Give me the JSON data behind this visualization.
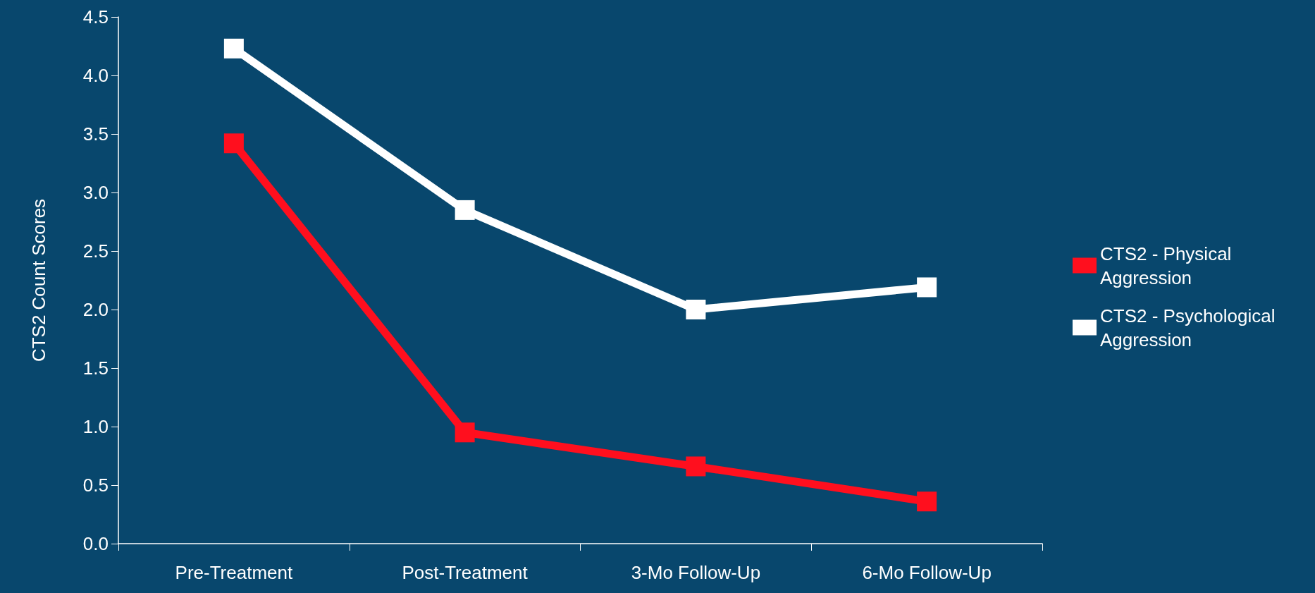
{
  "chart_data": {
    "type": "line",
    "ylabel": "CTS2 Count Scores",
    "categories": [
      "Pre-Treatment",
      "Post-Treatment",
      "3-Mo Follow-Up",
      "6-Mo Follow-Up"
    ],
    "series": [
      {
        "name": "CTS2 - Physical Aggression",
        "color": "#ff0f1e",
        "values": [
          3.42,
          0.95,
          0.66,
          0.36
        ]
      },
      {
        "name": "CTS2 - Psychological Aggression",
        "color": "#ffffff",
        "values": [
          4.23,
          2.85,
          2.0,
          2.19
        ]
      }
    ],
    "ylim": [
      0,
      4.5
    ],
    "yticks": [
      {
        "value": 0,
        "label": "0.0"
      },
      0.5,
      {
        "value": 1,
        "label": "1.0"
      },
      1.5,
      {
        "value": 2,
        "label": "2.0"
      },
      2.5,
      {
        "value": 3,
        "label": "3.0"
      },
      3.5,
      {
        "value": 4,
        "label": "4.0"
      },
      4.5
    ],
    "grid": false,
    "legend": "right",
    "marker": "square",
    "line_style": "solid"
  }
}
